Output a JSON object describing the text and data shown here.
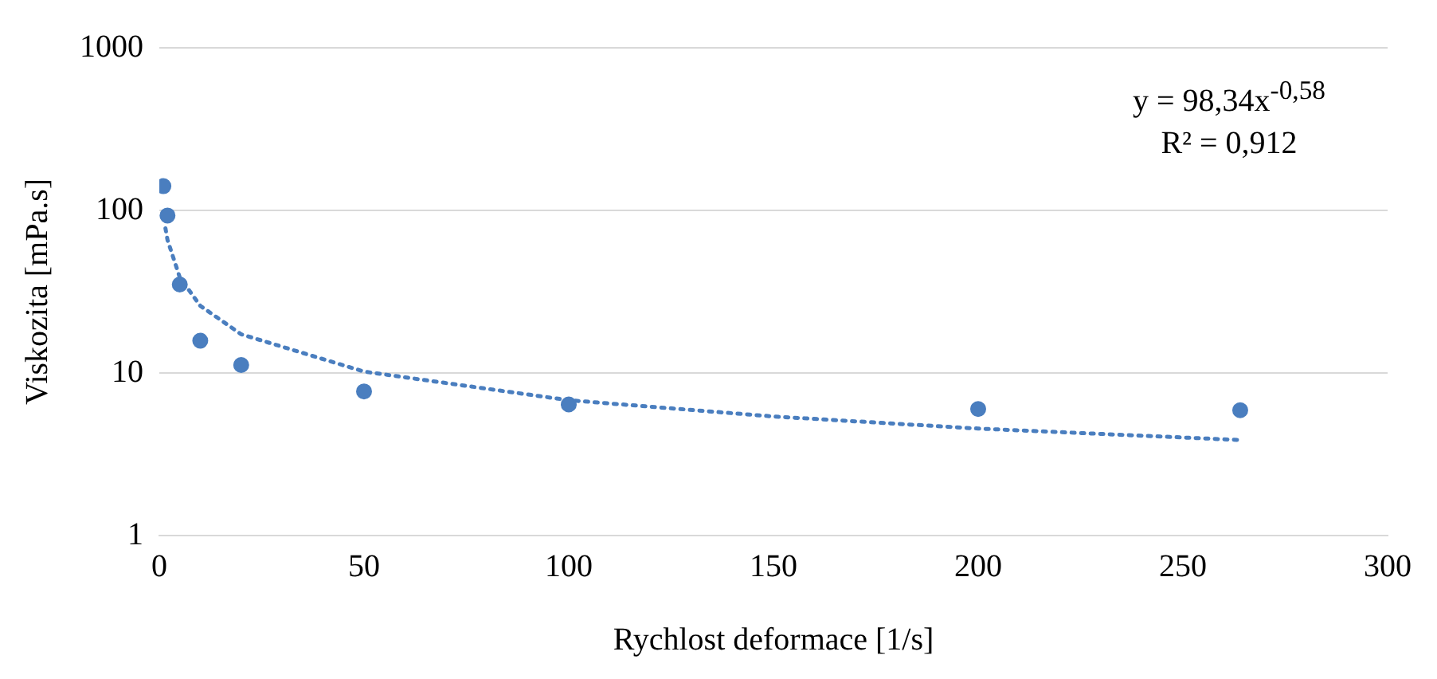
{
  "chart_data": {
    "type": "scatter",
    "xlabel": "Rychlost deformace [1/s]",
    "ylabel": "Viskozita [mPa.s]",
    "x": [
      1,
      2,
      5,
      10,
      20,
      50,
      100,
      200,
      264
    ],
    "series": [
      {
        "color": "#4a7ebf",
        "values": [
          141,
          93,
          35,
          15.8,
          11.2,
          7.7,
          6.4,
          6.0,
          5.9
        ]
      },
      {
        "type": "line",
        "color": "#4a7ebf",
        "line_style": "dotted",
        "marker": "none",
        "x": [
          1.5,
          2,
          5,
          10,
          20,
          50,
          100,
          150,
          200,
          264
        ],
        "values": [
          77.6,
          65.8,
          38.7,
          25.9,
          17.3,
          10.2,
          6.8,
          5.4,
          4.55,
          3.87
        ]
      }
    ],
    "xlim": [
      0,
      300
    ],
    "xticks": [
      0,
      50,
      100,
      150,
      200,
      250,
      300
    ],
    "ylim": [
      1,
      1000
    ],
    "yticks": [
      1,
      10,
      100,
      1000
    ],
    "log": "y",
    "grid": "y",
    "marker": "circle",
    "legend": false,
    "annotations": [
      "y = 98,34x$^{-0,58}$",
      "R² = 0,912"
    ]
  }
}
